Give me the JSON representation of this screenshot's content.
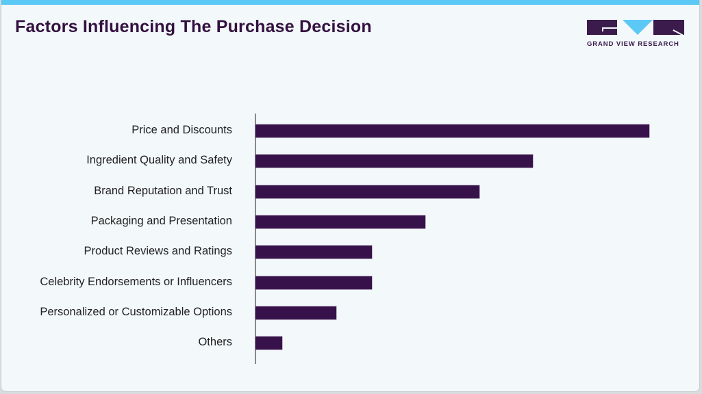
{
  "header": {
    "title": "Factors Influencing The Purchase Decision",
    "logo_text": "GRAND VIEW RESEARCH"
  },
  "colors": {
    "bar": "#37114a",
    "accent": "#5bc8f5",
    "title": "#33113f",
    "background": "#f3f8fb"
  },
  "chart_data": {
    "type": "bar",
    "orientation": "horizontal",
    "title": "Factors Influencing The Purchase Decision",
    "xlabel": "",
    "ylabel": "",
    "grid": false,
    "legend": null,
    "value_labels_shown": false,
    "categories": [
      "Price and Discounts",
      "Ingredient Quality and Safety",
      "Brand Reputation and Trust",
      "Packaging and Presentation",
      "Product Reviews and Ratings",
      "Celebrity Endorsements or Influencers",
      "Personalized or Customizable Options",
      "Others"
    ],
    "values": [
      22,
      15.5,
      12.5,
      9.5,
      6.5,
      6.5,
      4.5,
      1.5
    ],
    "xlim": [
      0,
      22
    ]
  }
}
